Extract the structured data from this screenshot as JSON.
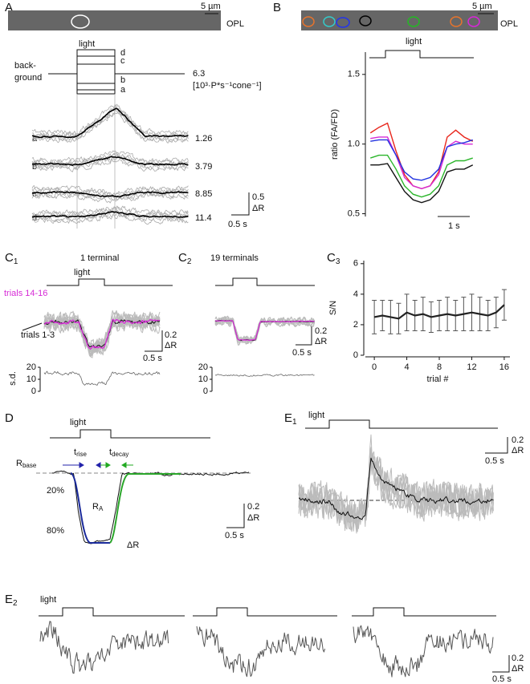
{
  "figure": {
    "A": {
      "label": "A",
      "scale": "5 µm",
      "layer": "OPL",
      "stimulus": "light",
      "levels": [
        "d",
        "c",
        "b",
        "a"
      ],
      "background": [
        "back-",
        "ground"
      ],
      "intensity": 6.3,
      "unit": "[10³·P*s⁻¹cone⁻¹]",
      "traces": [
        {
          "label": "a",
          "intensity": 1.26
        },
        {
          "label": "b",
          "intensity": 3.79
        },
        {
          "label": "c",
          "intensity": 8.85
        },
        {
          "label": "d",
          "intensity": 11.4
        }
      ],
      "scale_y": "0.5",
      "scale_unit": "ΔR",
      "scale_x": "0.5 s"
    },
    "B": {
      "label": "B",
      "scale": "5 µm",
      "layer": "OPL",
      "stimulus": "light",
      "scale_x": "1 s"
    },
    "C1": {
      "letter": "C",
      "sub": "1",
      "title": "1 terminal",
      "stimulus": "light",
      "trials_late": "trials 14-16",
      "trials_early": "trials 1-3",
      "scale_y": "0.2",
      "scale_unit": "ΔR",
      "scale_x": "0.5 s",
      "sd_label": "s.d.",
      "sd_ticks": [
        20,
        10,
        0
      ]
    },
    "C2": {
      "letter": "C",
      "sub": "2",
      "title": "19 terminals",
      "scale_y": "0.2",
      "scale_unit": "ΔR",
      "scale_x": "0.5 s",
      "sd_ticks": [
        20,
        10,
        0
      ]
    },
    "C3": {
      "letter": "C",
      "sub": "3"
    },
    "D": {
      "label": "D",
      "stimulus": "light",
      "r_base": {
        "main": "R",
        "sub": "base"
      },
      "t_rise": {
        "main": "t",
        "sub": "rise"
      },
      "t_decay": {
        "main": "t",
        "sub": "decay"
      },
      "pct_20": "20%",
      "pct_80": "80%",
      "r_a": {
        "main": "R",
        "sub": "A"
      },
      "delta": "ΔR",
      "scale_y": "0.2",
      "scale_unit": "ΔR",
      "scale_x": "0.5 s"
    },
    "E1": {
      "letter": "E",
      "sub": "1",
      "stimulus": "light",
      "scale_y": "0.2",
      "scale_unit": "ΔR",
      "scale_x": "0.5 s"
    },
    "E2": {
      "letter": "E",
      "sub": "2",
      "stimulus": "light",
      "scale_y": "0.2",
      "scale_unit": "ΔR",
      "scale_x": "0.5 s"
    }
  },
  "chart_data": [
    {
      "type": "line",
      "ylabel": "ratio (FA/FD)",
      "x": [
        0,
        0.25,
        0.5,
        0.75,
        1,
        1.25,
        1.5,
        1.75,
        2,
        2.25,
        2.5,
        2.75,
        3
      ],
      "xlim": [
        -0.1,
        3.1
      ],
      "ylim": [
        0.48,
        1.66
      ],
      "yticks": [
        0.5,
        {
          "value": 1,
          "label": "1.0"
        },
        1.5
      ],
      "series": [
        {
          "color": "#e8261c",
          "values": [
            1.08,
            1.12,
            1.15,
            0.95,
            0.78,
            0.7,
            0.68,
            0.7,
            0.8,
            1.05,
            1.1,
            1.05,
            1.02
          ]
        },
        {
          "color": "#d62bd6",
          "values": [
            1.04,
            1.05,
            1.05,
            0.92,
            0.76,
            0.7,
            0.68,
            0.7,
            0.78,
            0.98,
            1.02,
            1,
            1
          ]
        },
        {
          "color": "#2233e0",
          "values": [
            1.02,
            1.03,
            1.03,
            0.92,
            0.8,
            0.75,
            0.74,
            0.76,
            0.82,
            0.98,
            1,
            1.01,
            1.03
          ]
        },
        {
          "color": "#2ab52a",
          "values": [
            0.9,
            0.92,
            0.92,
            0.82,
            0.7,
            0.64,
            0.62,
            0.64,
            0.7,
            0.85,
            0.88,
            0.88,
            0.9
          ]
        },
        {
          "color": "#111111",
          "values": [
            0.85,
            0.85,
            0.86,
            0.76,
            0.66,
            0.6,
            0.58,
            0.6,
            0.66,
            0.8,
            0.82,
            0.82,
            0.85
          ]
        }
      ]
    },
    {
      "type": "line",
      "ylabel": "S/N",
      "xlabel": "trial #",
      "color": "#222222",
      "x": [
        0,
        1,
        2,
        3,
        4,
        5,
        6,
        7,
        8,
        9,
        10,
        11,
        12,
        13,
        14,
        15,
        16
      ],
      "values": [
        2.5,
        2.6,
        2.5,
        2.4,
        2.8,
        2.6,
        2.7,
        2.5,
        2.6,
        2.7,
        2.6,
        2.7,
        2.8,
        2.7,
        2.6,
        2.8,
        3.3
      ],
      "errors": [
        1.1,
        1,
        1.1,
        1,
        1.2,
        1,
        1.1,
        1,
        1,
        1.1,
        1,
        1.1,
        1.2,
        1.1,
        1,
        1,
        1
      ],
      "xlim": [
        -1.1,
        16.7
      ],
      "ylim": [
        0,
        6.2
      ],
      "xticks": [
        0,
        4,
        8,
        12,
        16
      ],
      "yticks": [
        0,
        2,
        4,
        6
      ]
    }
  ]
}
